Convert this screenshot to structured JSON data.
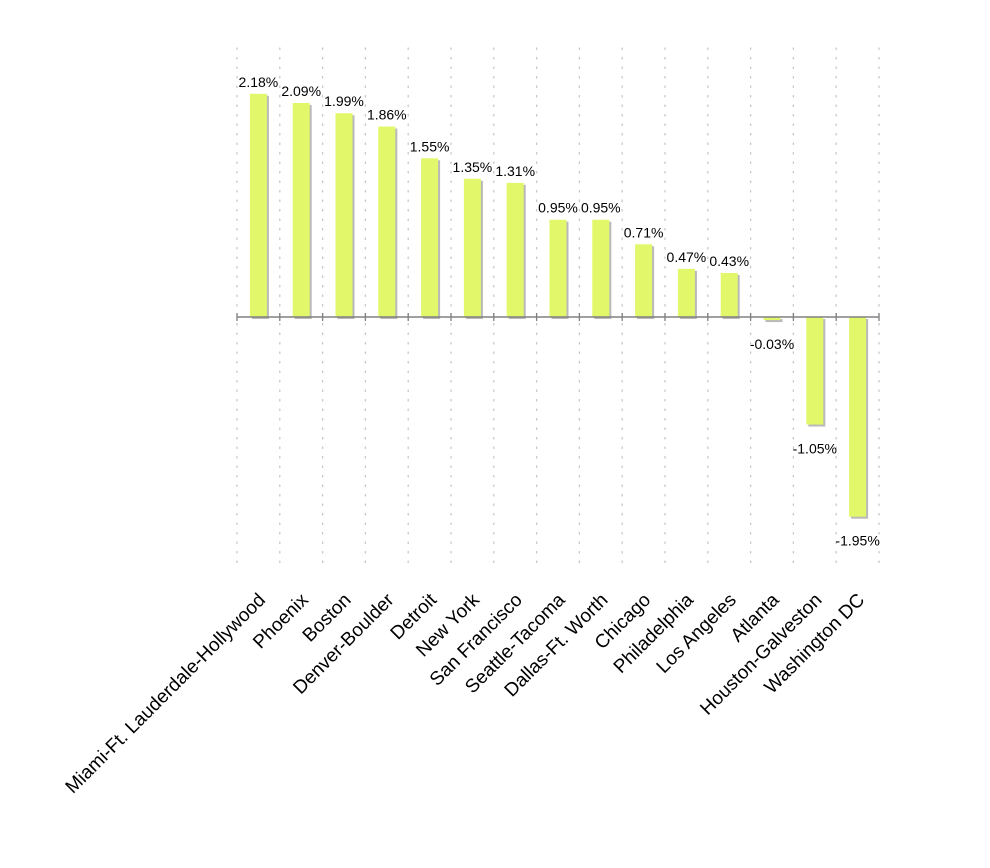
{
  "chart_data": {
    "type": "bar",
    "title": "",
    "xlabel": "",
    "ylabel": "",
    "categories": [
      "Miami-Ft. Lauderdale-Hollywood",
      "Phoenix",
      "Boston",
      "Denver-Boulder",
      "Detroit",
      "New York",
      "San Francisco",
      "Seattle-Tacoma",
      "Dallas-Ft. Worth",
      "Chicago",
      "Philadelphia",
      "Los Angeles",
      "Atlanta",
      "Houston-Galveston",
      "Washington DC"
    ],
    "values": [
      2.18,
      2.09,
      1.99,
      1.86,
      1.55,
      1.35,
      1.31,
      0.95,
      0.95,
      0.71,
      0.47,
      0.43,
      -0.03,
      -1.05,
      -1.95
    ],
    "value_labels": [
      "2.18%",
      "2.09%",
      "1.99%",
      "1.86%",
      "1.55%",
      "1.35%",
      "1.31%",
      "0.95%",
      "0.95%",
      "0.71%",
      "0.47%",
      "0.43%",
      "-0.03%",
      "-1.05%",
      "-1.95%"
    ],
    "value_suffix": "%",
    "ylim": [
      -2.45,
      2.65
    ],
    "grid": "vertical dotted",
    "legend": "none",
    "colors": {
      "bar": "#e2f86a",
      "shadow": "#7f7f7f",
      "axis": "#808080",
      "grid": "#c8c8c8"
    }
  }
}
